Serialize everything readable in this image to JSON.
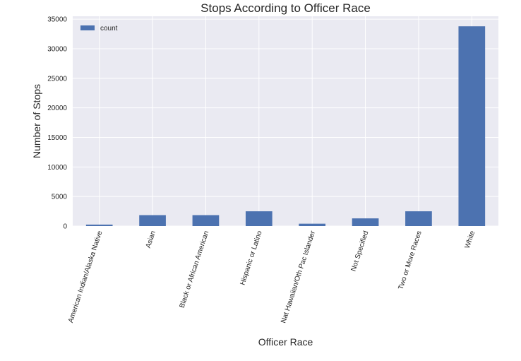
{
  "chart_data": {
    "type": "bar",
    "title": "Stops According to Officer Race",
    "xlabel": "Officer Race",
    "ylabel": "Number of Stops",
    "categories": [
      "American Indian/Alaska Native",
      "Asian",
      "Black or African American",
      "Hispanic or Latino",
      "Nat Hawaiian/Oth Pac Islander",
      "Not Specified",
      "Two or More Races",
      "White"
    ],
    "series": [
      {
        "name": "count",
        "values": [
          250,
          1850,
          1850,
          2500,
          400,
          1300,
          2500,
          33800
        ]
      }
    ],
    "ylim": [
      0,
      35500
    ],
    "yticks": [
      0,
      5000,
      10000,
      15000,
      20000,
      25000,
      30000,
      35000
    ],
    "grid": true,
    "legend": "top-left",
    "colors": {
      "bar": "#4c72b0",
      "plot_bg": "#eaeaf2",
      "grid": "#ffffff"
    }
  }
}
